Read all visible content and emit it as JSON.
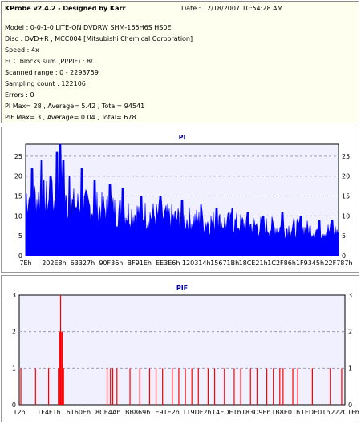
{
  "header": {
    "title": "KProbe v2.4.2 - Designed by Karr",
    "date": "Date : 12/18/2007 10:54:28 AM"
  },
  "info_lines": [
    "Model : 0-0-1-0 LITE-ON DVDRW SHM-165H6S HS0E",
    "Disc : DVD+R , MCC004 [Mitsubishi Chemical Corporation]",
    "Speed : 4x",
    "ECC blocks sum (PI/PIF) : 8/1",
    "Scanned range : 0 - 2293759",
    "Sampling count : 122106",
    "Errors : 0",
    "PI Max= 28 , Average= 5.42 , Total= 94541",
    "PIF Max= 3 , Average= 0.04 , Total= 678"
  ],
  "colors": {
    "info_bg": "#fffff0",
    "plot_bg": "#f0f0ff",
    "pi_series": "#0000ff",
    "pif_series": "#ff0000",
    "title_color": "#0000a0",
    "grid": "#9a9ab8"
  },
  "chart_data": [
    {
      "type": "area",
      "title": "PI",
      "ylim": [
        0,
        28
      ],
      "yticks": [
        0,
        5,
        10,
        15,
        20,
        25
      ],
      "xlabels": [
        "7Eh",
        "202E8h",
        "63327h",
        "90F36h",
        "BF91Eh",
        "EE3E6h",
        "120314h",
        "15671Bh",
        "18CE21h",
        "1C2F86h",
        "1F9345h",
        "22F787h"
      ],
      "grid": true,
      "series": [
        {
          "profile_x": [
            0,
            2,
            5,
            8,
            11,
            14,
            20,
            25,
            30,
            35,
            40,
            45,
            50,
            55,
            60,
            65,
            70,
            75,
            80,
            85,
            90,
            95,
            100
          ],
          "profile_baseline": [
            15,
            14.5,
            14,
            13.5,
            13,
            12.5,
            12,
            11.5,
            11,
            10.5,
            10,
            9.5,
            9,
            8.7,
            8.3,
            8,
            7.7,
            7.3,
            7,
            6.8,
            6.5,
            6.3,
            6
          ],
          "peaks_x": [
            2,
            5,
            8,
            10,
            11,
            12,
            14,
            18,
            22,
            27,
            31,
            37,
            43,
            50,
            56,
            61,
            66,
            71,
            76,
            82,
            88,
            94,
            98
          ],
          "peaks_y": [
            22,
            24,
            20,
            26,
            28,
            24,
            20,
            22,
            19,
            18,
            17,
            15,
            15,
            14,
            13,
            12,
            12,
            11,
            10,
            11,
            10,
            9,
            9
          ]
        }
      ]
    },
    {
      "type": "bar",
      "title": "PIF",
      "ylim": [
        0,
        3
      ],
      "yticks": [
        0,
        1,
        2,
        3
      ],
      "xlabels": [
        "12h",
        "1F4F1h",
        "6160Eh",
        "8CE4Ah",
        "BB869h",
        "E91E2h",
        "119DF2h",
        "14EDE1h",
        "183D9Eh",
        "1B8E01h",
        "1EDE01h",
        "222C1Fh"
      ],
      "grid": true,
      "series": [
        {
          "x_percent": [
            0.5,
            5,
            9,
            12,
            12.4,
            12.7,
            13,
            13.2,
            13.4,
            13.6,
            27,
            28,
            28.7,
            30,
            34,
            37,
            40,
            42,
            44,
            47,
            49,
            51,
            53,
            55,
            58,
            60,
            63,
            66,
            68,
            71,
            73,
            76,
            78,
            80,
            81,
            84,
            85.5,
            90,
            95.5,
            99
          ],
          "y": [
            1,
            1,
            1,
            1,
            2,
            3,
            2,
            2,
            1,
            1,
            1,
            1,
            1,
            1,
            1,
            1,
            1,
            1,
            1,
            1,
            1,
            1,
            1,
            1,
            1,
            1,
            1,
            1,
            1,
            1,
            1,
            1,
            1,
            1,
            1,
            1,
            1,
            1,
            1,
            1
          ]
        }
      ]
    }
  ]
}
